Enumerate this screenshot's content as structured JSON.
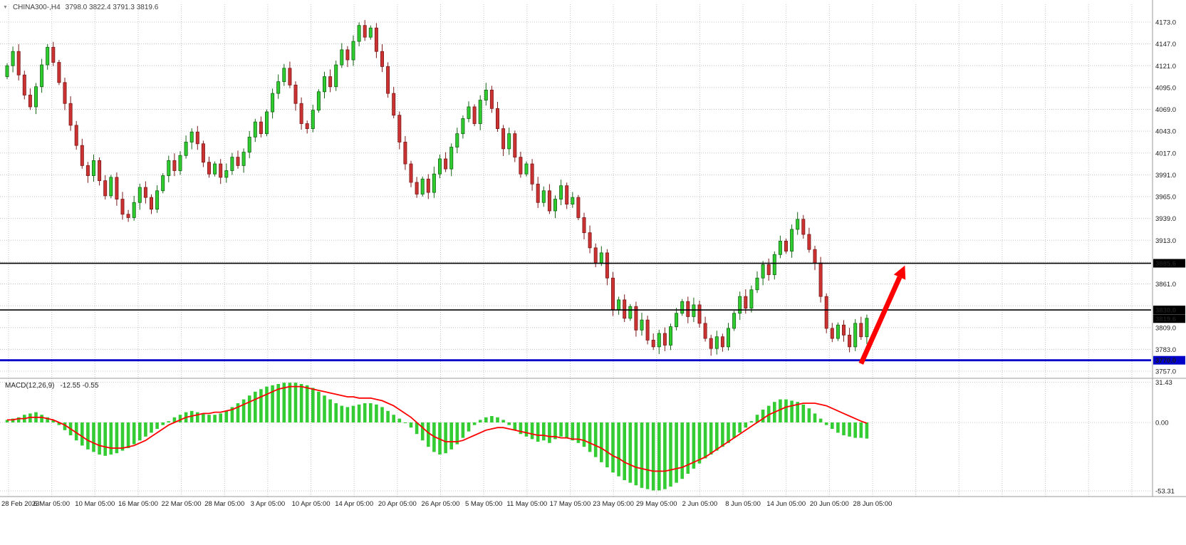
{
  "header": {
    "symbol_timeframe": "CHINA300-,H4",
    "ohlc": "3798.0 3822.4 3791.3 3819.6"
  },
  "icons": {
    "dropdown": "▼"
  },
  "macd_panel": {
    "label": "MACD(12,26,9)",
    "values": "-12.55 -0.55"
  },
  "colors": {
    "bull": "#2ecc2e",
    "bull_stroke": "#156615",
    "bear": "#cc3232",
    "bear_stroke": "#7c1a1a",
    "grid": "#c4c4c4",
    "separator": "#9a9a9a",
    "axis_text": "#1c1c1c",
    "level_black": "#000000",
    "level_blue": "#0000c8",
    "macd_hist": "#33cc33",
    "macd_signal": "#ff0000",
    "arrow": "#ff0000",
    "tag_text": "#ffffff"
  },
  "chart_data": [
    {
      "type": "candlestick",
      "symbol": "CHINA300-",
      "timeframe": "H4",
      "last": {
        "open": 3798.0,
        "high": 3822.4,
        "low": 3791.3,
        "close": 3819.6
      },
      "y_grid": {
        "min": 3757,
        "max": 4173,
        "step": 26
      },
      "y_ticks": [
        "4173.0",
        "4147.0",
        "4121.0",
        "4095.0",
        "4069.0",
        "4043.0",
        "4017.0",
        "3991.0",
        "3965.0",
        "3939.0",
        "3913.0",
        "3861.0",
        "3809.0",
        "3783.0",
        "3757.0"
      ],
      "x_labels": [
        "28 Feb 2023",
        "6 Mar 05:00",
        "10 Mar 05:00",
        "16 Mar 05:00",
        "22 Mar 05:00",
        "28 Mar 05:00",
        "3 Apr 05:00",
        "10 Apr 05:00",
        "14 Apr 05:00",
        "20 Apr 05:00",
        "26 Apr 05:00",
        "5 May 05:00",
        "11 May 05:00",
        "17 May 05:00",
        "23 May 05:00",
        "29 May 05:00",
        "2 Jun 05:00",
        "8 Jun 05:00",
        "14 Jun 05:00",
        "20 Jun 05:00",
        "28 Jun 05:00"
      ],
      "first_open": 4108,
      "closes": [
        4121,
        4138,
        4110,
        4086,
        4072,
        4096,
        4122,
        4143,
        4125,
        4101,
        4076,
        4050,
        4026,
        4002,
        3990,
        4008,
        3984,
        3966,
        3988,
        3962,
        3944,
        3940,
        3958,
        3976,
        3964,
        3950,
        3972,
        3990,
        4008,
        3996,
        4014,
        4030,
        4042,
        4028,
        4006,
        3992,
        4004,
        3988,
        3996,
        4012,
        4002,
        4018,
        4036,
        4054,
        4040,
        4066,
        4088,
        4102,
        4118,
        4098,
        4076,
        4052,
        4046,
        4068,
        4090,
        4108,
        4096,
        4122,
        4140,
        4128,
        4150,
        4169,
        4155,
        4166,
        4138,
        4120,
        4088,
        4062,
        4030,
        4004,
        3982,
        3968,
        3986,
        3970,
        3992,
        4010,
        3998,
        4024,
        4040,
        4058,
        4072,
        4052,
        4080,
        4092,
        4070,
        4046,
        4022,
        4040,
        4012,
        3992,
        4004,
        3980,
        3958,
        3972,
        3948,
        3962,
        3978,
        3956,
        3964,
        3940,
        3922,
        3904,
        3886,
        3898,
        3868,
        3830,
        3842,
        3820,
        3834,
        3806,
        3818,
        3794,
        3786,
        3802,
        3788,
        3810,
        3826,
        3840,
        3822,
        3836,
        3814,
        3796,
        3784,
        3798,
        3786,
        3808,
        3826,
        3846,
        3832,
        3854,
        3868,
        3884,
        3872,
        3896,
        3912,
        3900,
        3926,
        3938,
        3920,
        3902,
        3886,
        3846,
        3808,
        3796,
        3812,
        3800,
        3786,
        3814,
        3798,
        3820
      ],
      "levels": [
        {
          "price": 3885.6,
          "color": "#000000",
          "width": 1.6
        },
        {
          "price": 3830.0,
          "color": "#000000",
          "width": 1.6
        },
        {
          "price": 3770.0,
          "color": "#0000c8",
          "width": 2.8
        }
      ],
      "price_tags": [
        {
          "text": "3885.6",
          "price": 3885.6,
          "bg": "#000000"
        },
        {
          "text": "3830.0",
          "price": 3830.0,
          "bg": "#000000"
        },
        {
          "text": "3819.6",
          "price": 3819.6,
          "bg": "#000000"
        },
        {
          "text": "3770.0",
          "price": 3770.0,
          "bg": "#0000c8"
        }
      ],
      "arrow": {
        "from_index": 148,
        "from_price": 3766,
        "to_index": 155.6,
        "to_price": 3883,
        "color": "#ff0000"
      }
    },
    {
      "type": "macd",
      "label": "MACD(12,26,9)",
      "current": {
        "macd": -12.55,
        "signal": -0.55
      },
      "y_ticks": [
        "31.43",
        "0.00",
        "-53.31"
      ],
      "histogram": [
        2,
        3,
        4,
        6,
        7,
        8,
        6,
        4,
        2,
        -2,
        -6,
        -10,
        -14,
        -18,
        -21,
        -23,
        -25,
        -26,
        -25,
        -24,
        -22,
        -20,
        -17,
        -14,
        -11,
        -8,
        -5,
        -2,
        1,
        4,
        6,
        8,
        9,
        8,
        7,
        6,
        6,
        7,
        9,
        12,
        15,
        18,
        21,
        24,
        26,
        28,
        29,
        30,
        31,
        31,
        31,
        30,
        29,
        27,
        24,
        21,
        18,
        15,
        13,
        12,
        13,
        14,
        15,
        15,
        14,
        12,
        9,
        6,
        3,
        0,
        -4,
        -9,
        -14,
        -19,
        -23,
        -25,
        -24,
        -21,
        -17,
        -12,
        -7,
        -2,
        2,
        4,
        5,
        4,
        2,
        -2,
        -6,
        -9,
        -11,
        -13,
        -15,
        -14,
        -16,
        -13,
        -11,
        -12,
        -14,
        -16,
        -19,
        -23,
        -27,
        -31,
        -35,
        -39,
        -42,
        -45,
        -47,
        -49,
        -51,
        -52,
        -53,
        -53,
        -52,
        -50,
        -47,
        -44,
        -40,
        -36,
        -32,
        -28,
        -25,
        -22,
        -19,
        -16,
        -12,
        -8,
        -4,
        1,
        6,
        10,
        13,
        16,
        18,
        18,
        17,
        16,
        14,
        11,
        7,
        3,
        -2,
        -5,
        -8,
        -10,
        -11,
        -12,
        -12,
        -12.55
      ],
      "signal": [
        2,
        2,
        3,
        3,
        4,
        4,
        4,
        3,
        2,
        0,
        -2,
        -5,
        -8,
        -11,
        -14,
        -16,
        -18,
        -19,
        -20,
        -20,
        -20,
        -19,
        -18,
        -16,
        -14,
        -11,
        -8,
        -5,
        -2,
        0,
        2,
        4,
        5,
        6,
        7,
        7,
        8,
        8,
        9,
        10,
        12,
        14,
        16,
        18,
        20,
        22,
        24,
        26,
        27,
        28,
        28,
        28,
        27,
        26,
        25,
        24,
        23,
        22,
        21,
        20,
        20,
        19,
        19,
        19,
        18,
        17,
        15,
        13,
        10,
        7,
        4,
        0,
        -4,
        -8,
        -11,
        -13,
        -15,
        -15,
        -15,
        -14,
        -12,
        -10,
        -8,
        -6,
        -5,
        -4,
        -4,
        -5,
        -6,
        -7,
        -8,
        -9,
        -10,
        -10,
        -11,
        -11,
        -12,
        -12,
        -13,
        -13,
        -14,
        -16,
        -18,
        -20,
        -23,
        -26,
        -28,
        -31,
        -33,
        -35,
        -36,
        -37,
        -38,
        -38,
        -38,
        -37,
        -36,
        -35,
        -33,
        -31,
        -29,
        -27,
        -24,
        -21,
        -18,
        -15,
        -12,
        -9,
        -6,
        -3,
        0,
        3,
        6,
        8,
        10,
        12,
        13,
        14,
        15,
        15,
        15,
        14,
        13,
        11,
        9,
        7,
        5,
        3,
        1,
        -0.55
      ]
    }
  ]
}
